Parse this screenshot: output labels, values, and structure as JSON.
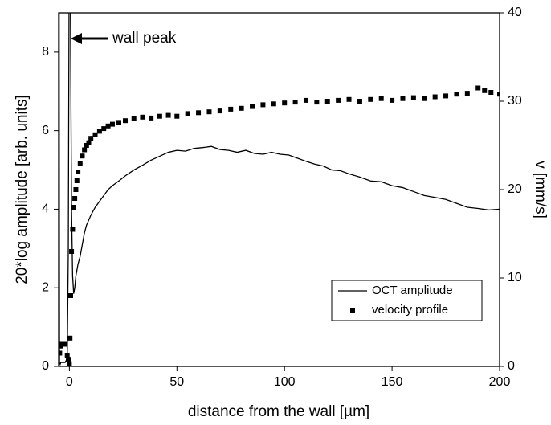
{
  "chart_data": {
    "type": "line",
    "xlabel": "distance from the wall [µm]",
    "ylabel": "20*log amplitude [arb. units]",
    "y2label": "v [mm/s]",
    "annotation": "wall peak",
    "xlim": [
      -5,
      200
    ],
    "xticks": [
      0,
      50,
      100,
      150,
      200
    ],
    "ylim": [
      0,
      9
    ],
    "yticks": [
      0,
      2,
      4,
      6,
      8
    ],
    "y2lim": [
      0,
      40
    ],
    "y2ticks": [
      0,
      10,
      20,
      30,
      40
    ],
    "legend": "lower right",
    "series": [
      {
        "name": "OCT amplitude",
        "color": "#000000",
        "type": "line",
        "x": [
          -4.8,
          -4.6,
          -4.3,
          -4,
          -3,
          -2,
          -1,
          -0.5,
          0,
          0.5,
          1,
          1.5,
          2,
          2.5,
          3,
          4,
          5,
          6,
          7,
          8,
          10,
          12,
          14,
          16,
          18,
          20,
          23,
          26,
          30,
          34,
          38,
          42,
          46,
          50,
          54,
          58,
          62,
          66,
          70,
          74,
          78,
          82,
          86,
          90,
          94,
          98,
          102,
          106,
          110,
          114,
          118,
          122,
          126,
          130,
          135,
          140,
          145,
          150,
          155,
          160,
          165,
          170,
          175,
          180,
          185,
          190,
          195,
          200
        ],
        "values": [
          12,
          0.1,
          0.05,
          0.1,
          0.1,
          0.1,
          0.2,
          3,
          12,
          9,
          4,
          2.3,
          1.85,
          2.0,
          2.3,
          2.6,
          2.8,
          3.1,
          3.4,
          3.6,
          3.85,
          4.05,
          4.2,
          4.35,
          4.5,
          4.6,
          4.72,
          4.85,
          5.0,
          5.12,
          5.25,
          5.35,
          5.45,
          5.5,
          5.48,
          5.55,
          5.57,
          5.6,
          5.52,
          5.5,
          5.45,
          5.5,
          5.42,
          5.4,
          5.45,
          5.4,
          5.38,
          5.3,
          5.22,
          5.15,
          5.1,
          5.0,
          4.98,
          4.9,
          4.82,
          4.72,
          4.7,
          4.6,
          4.55,
          4.45,
          4.35,
          4.3,
          4.25,
          4.15,
          4.05,
          4.02,
          3.98,
          4.0
        ]
      },
      {
        "name": "velocity profile",
        "color": "#000000",
        "type": "scatter",
        "axis": "y2",
        "x": [
          -4.5,
          -4,
          -3.5,
          -2,
          -1,
          -0.5,
          0,
          0.3,
          0.6,
          1,
          1.5,
          2,
          2.5,
          3,
          3.5,
          4,
          5,
          6,
          7,
          8,
          9,
          10,
          12,
          14,
          16,
          18,
          20,
          23,
          26,
          30,
          34,
          38,
          42,
          46,
          50,
          55,
          60,
          65,
          70,
          75,
          80,
          85,
          90,
          95,
          100,
          105,
          110,
          115,
          120,
          125,
          130,
          135,
          140,
          145,
          150,
          155,
          160,
          165,
          170,
          175,
          180,
          185,
          190,
          193,
          196,
          200
        ],
        "values": [
          1.5,
          2.3,
          2.5,
          2.5,
          1.2,
          0.8,
          0.3,
          3.2,
          8,
          13,
          15.5,
          18,
          19,
          20,
          21,
          22,
          23,
          23.8,
          24.5,
          25,
          25.3,
          25.8,
          26.2,
          26.6,
          26.9,
          27.2,
          27.4,
          27.6,
          27.8,
          28,
          28.2,
          28.1,
          28.3,
          28.4,
          28.3,
          28.6,
          28.7,
          28.8,
          28.9,
          29.1,
          29.2,
          29.4,
          29.6,
          29.7,
          29.8,
          29.9,
          30.1,
          29.9,
          30.0,
          30.1,
          30.2,
          30.0,
          30.2,
          30.3,
          30.1,
          30.3,
          30.4,
          30.3,
          30.5,
          30.6,
          30.8,
          30.9,
          31.5,
          31.2,
          31.0,
          30.8
        ]
      }
    ]
  }
}
